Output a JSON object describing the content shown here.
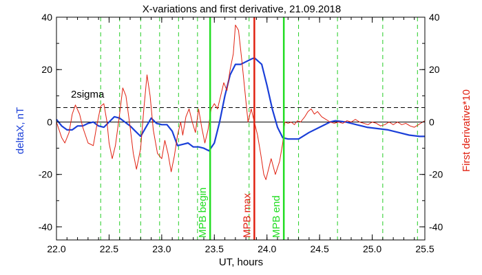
{
  "chart_data": {
    "type": "line",
    "title": "X-variations and first derivative, 21.09.2018",
    "xlabel": "UT, hours",
    "ylabel_left": "deltaX, nT",
    "ylabel_right": "First derivative*10",
    "xlim": [
      22.0,
      25.5
    ],
    "ylim": [
      -45,
      40
    ],
    "x_ticks": [
      "22.0",
      "22.5",
      "23.0",
      "23.5",
      "24.0",
      "24.5",
      "25.0",
      "25.5"
    ],
    "y_ticks_left": [
      "-40",
      "-20",
      "0",
      "20",
      "40"
    ],
    "y_ticks_right": [
      "-40",
      "-20",
      "0",
      "20",
      "40"
    ],
    "sigma_label": "2sigma",
    "sigma_level": 5.5,
    "dashed_verticals": [
      22.42,
      22.6,
      22.8,
      22.98,
      23.16,
      23.34,
      23.83,
      24.3,
      24.67,
      25.1,
      25.43
    ],
    "markers": [
      {
        "label": "MPB begin",
        "x": 23.46,
        "color": "#22dd22"
      },
      {
        "label": "MPB max",
        "x": 23.88,
        "color": "#e02010"
      },
      {
        "label": "MPB end",
        "x": 24.16,
        "color": "#22dd22"
      }
    ],
    "series": [
      {
        "name": "deltaX, nT",
        "color": "#1a3fd8",
        "points": [
          [
            22.0,
            1.0
          ],
          [
            22.05,
            -1.5
          ],
          [
            22.1,
            -3.0
          ],
          [
            22.15,
            -3.0
          ],
          [
            22.2,
            -1.5
          ],
          [
            22.25,
            -1.5
          ],
          [
            22.3,
            -0.5
          ],
          [
            22.35,
            0.0
          ],
          [
            22.4,
            -1.5
          ],
          [
            22.45,
            -2.0
          ],
          [
            22.5,
            0.0
          ],
          [
            22.55,
            2.0
          ],
          [
            22.6,
            1.5
          ],
          [
            22.65,
            0.0
          ],
          [
            22.7,
            -1.5
          ],
          [
            22.75,
            -3.5
          ],
          [
            22.8,
            -5.5
          ],
          [
            22.85,
            -2.0
          ],
          [
            22.9,
            1.5
          ],
          [
            22.95,
            -0.5
          ],
          [
            23.0,
            -1.0
          ],
          [
            23.05,
            -1.0
          ],
          [
            23.1,
            -3.5
          ],
          [
            23.15,
            -9.0
          ],
          [
            23.2,
            -8.5
          ],
          [
            23.25,
            -8.0
          ],
          [
            23.3,
            -9.5
          ],
          [
            23.35,
            -9.5
          ],
          [
            23.4,
            -10.0
          ],
          [
            23.45,
            -11.0
          ],
          [
            23.5,
            -8.0
          ],
          [
            23.55,
            0.0
          ],
          [
            23.6,
            10.0
          ],
          [
            23.65,
            18.0
          ],
          [
            23.7,
            22.0
          ],
          [
            23.75,
            22.0
          ],
          [
            23.8,
            23.0
          ],
          [
            23.85,
            24.0
          ],
          [
            23.88,
            24.5
          ],
          [
            23.95,
            22.0
          ],
          [
            24.0,
            14.0
          ],
          [
            24.05,
            5.0
          ],
          [
            24.1,
            -2.0
          ],
          [
            24.15,
            -6.0
          ],
          [
            24.2,
            -6.5
          ],
          [
            24.3,
            -6.5
          ],
          [
            24.4,
            -4.0
          ],
          [
            24.5,
            -2.0
          ],
          [
            24.6,
            0.0
          ],
          [
            24.65,
            0.5
          ],
          [
            24.75,
            0.0
          ],
          [
            24.85,
            -1.0
          ],
          [
            24.95,
            -2.0
          ],
          [
            25.05,
            -2.5
          ],
          [
            25.15,
            -3.0
          ],
          [
            25.25,
            -4.0
          ],
          [
            25.35,
            -5.0
          ],
          [
            25.45,
            -5.5
          ],
          [
            25.5,
            -5.5
          ]
        ]
      },
      {
        "name": "First derivative*10",
        "color": "#e02010",
        "points": [
          [
            22.0,
            0.0
          ],
          [
            22.05,
            -6.0
          ],
          [
            22.08,
            -8.0
          ],
          [
            22.12,
            -4.0
          ],
          [
            22.15,
            3.0
          ],
          [
            22.18,
            6.5
          ],
          [
            22.22,
            3.0
          ],
          [
            22.25,
            -2.0
          ],
          [
            22.3,
            -8.0
          ],
          [
            22.35,
            -9.0
          ],
          [
            22.38,
            -2.0
          ],
          [
            22.42,
            6.0
          ],
          [
            22.45,
            7.0
          ],
          [
            22.48,
            0.0
          ],
          [
            22.5,
            -8.0
          ],
          [
            22.53,
            -14.0
          ],
          [
            22.56,
            -9.0
          ],
          [
            22.6,
            3.0
          ],
          [
            22.63,
            13.0
          ],
          [
            22.66,
            10.0
          ],
          [
            22.7,
            -2.0
          ],
          [
            22.73,
            -12.0
          ],
          [
            22.76,
            -18.0
          ],
          [
            22.8,
            -10.0
          ],
          [
            22.83,
            5.0
          ],
          [
            22.86,
            18.0
          ],
          [
            22.89,
            10.0
          ],
          [
            22.92,
            -3.0
          ],
          [
            22.96,
            -12.0
          ],
          [
            23.0,
            -14.0
          ],
          [
            23.03,
            -7.0
          ],
          [
            23.06,
            -12.0
          ],
          [
            23.09,
            -19.0
          ],
          [
            23.12,
            -13.0
          ],
          [
            23.15,
            -5.0
          ],
          [
            23.18,
            0.0
          ],
          [
            23.2,
            -5.0
          ],
          [
            23.23,
            2.0
          ],
          [
            23.26,
            5.0
          ],
          [
            23.29,
            0.0
          ],
          [
            23.32,
            -4.0
          ],
          [
            23.35,
            5.0
          ],
          [
            23.38,
            -2.0
          ],
          [
            23.41,
            -8.0
          ],
          [
            23.44,
            -3.0
          ],
          [
            23.47,
            5.0
          ],
          [
            23.5,
            7.0
          ],
          [
            23.53,
            5.0
          ],
          [
            23.56,
            10.0
          ],
          [
            23.59,
            15.0
          ],
          [
            23.62,
            12.0
          ],
          [
            23.65,
            20.0
          ],
          [
            23.68,
            26.0
          ],
          [
            23.7,
            37.0
          ],
          [
            23.73,
            35.0
          ],
          [
            23.76,
            24.0
          ],
          [
            23.79,
            12.0
          ],
          [
            23.82,
            0.0
          ],
          [
            23.85,
            5.0
          ],
          [
            23.88,
            0.0
          ],
          [
            23.91,
            -5.0
          ],
          [
            23.94,
            -12.0
          ],
          [
            23.97,
            -20.0
          ],
          [
            23.99,
            -22.0
          ],
          [
            24.04,
            -14.0
          ],
          [
            24.08,
            -20.0
          ],
          [
            24.12,
            -15.0
          ],
          [
            24.15,
            -8.0
          ],
          [
            24.17,
            0.0
          ],
          [
            24.2,
            -0.5
          ],
          [
            24.23,
            0.0
          ],
          [
            24.26,
            -1.0
          ],
          [
            24.29,
            0.5
          ],
          [
            24.32,
            0.0
          ],
          [
            24.36,
            2.0
          ],
          [
            24.39,
            4.0
          ],
          [
            24.42,
            5.0
          ],
          [
            24.45,
            3.0
          ],
          [
            24.48,
            4.0
          ],
          [
            24.52,
            2.0
          ],
          [
            24.56,
            1.0
          ],
          [
            24.6,
            0.0
          ],
          [
            24.64,
            -0.5
          ],
          [
            24.68,
            0.0
          ],
          [
            24.72,
            -0.5
          ],
          [
            24.76,
            0.5
          ],
          [
            24.8,
            0.0
          ],
          [
            24.84,
            1.0
          ],
          [
            24.88,
            0.0
          ],
          [
            24.92,
            -0.5
          ],
          [
            24.96,
            -1.0
          ],
          [
            25.0,
            0.0
          ],
          [
            25.04,
            -0.5
          ],
          [
            25.08,
            -1.5
          ],
          [
            25.12,
            -1.0
          ],
          [
            25.16,
            0.0
          ],
          [
            25.2,
            -1.0
          ],
          [
            25.24,
            0.0
          ],
          [
            25.28,
            -1.0
          ],
          [
            25.32,
            -0.5
          ],
          [
            25.36,
            -1.5
          ],
          [
            25.4,
            -2.0
          ],
          [
            25.44,
            -1.0
          ],
          [
            25.48,
            0.0
          ],
          [
            25.5,
            0.5
          ]
        ]
      }
    ]
  },
  "colors": {
    "deltaX": "#1a3fd8",
    "derivative": "#e02010",
    "marker_green": "#22dd22",
    "dashed_green": "#22cc22"
  }
}
